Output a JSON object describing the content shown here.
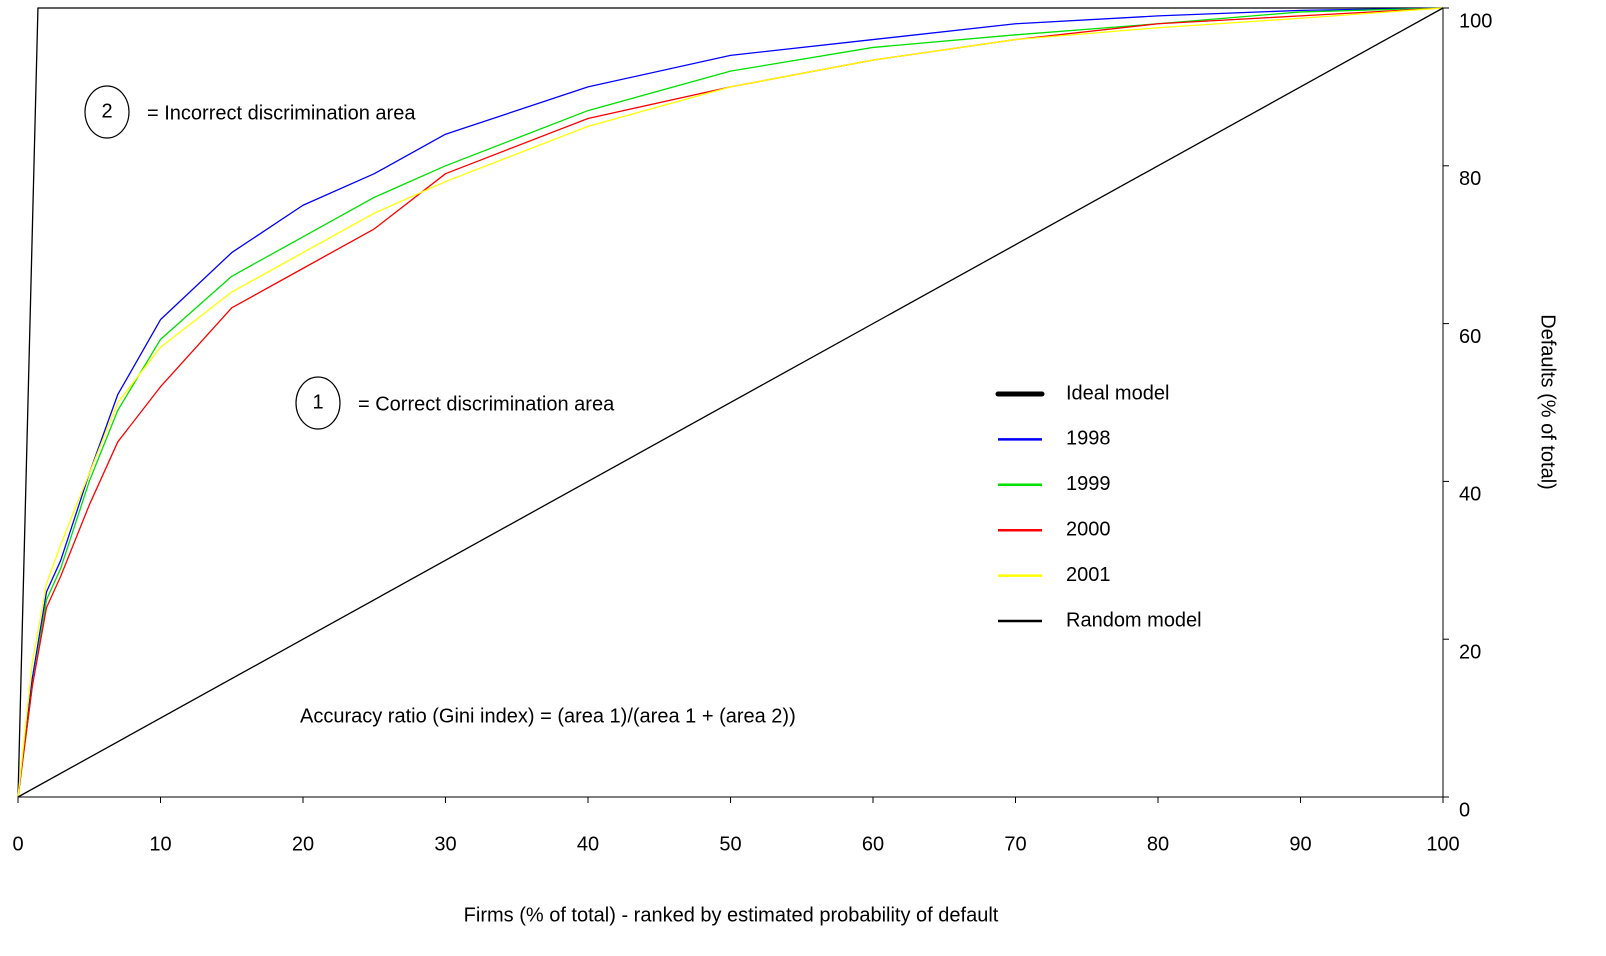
{
  "chart_data": {
    "type": "line",
    "x_label": "Firms (% of total) - ranked by estimated probability of default",
    "y_label": "Defaults (% of total)",
    "xlim": [
      0,
      100
    ],
    "xticks": [
      0,
      10,
      20,
      30,
      40,
      50,
      60,
      70,
      80,
      90,
      100
    ],
    "ylim": [
      0,
      100
    ],
    "yticks": [
      0,
      20,
      40,
      60,
      80,
      100
    ],
    "legend": "right",
    "series": [
      {
        "name": "Ideal model",
        "color": "#000000",
        "x": [
          0,
          1.4,
          100
        ],
        "values": [
          0,
          100,
          100
        ]
      },
      {
        "name": "1998",
        "color": "#0000ff",
        "x": [
          0,
          1,
          2,
          3,
          5,
          7,
          10,
          15,
          20,
          25,
          30,
          40,
          50,
          60,
          70,
          80,
          90,
          100
        ],
        "values": [
          0,
          15,
          26,
          30,
          41,
          51,
          60.5,
          69,
          75,
          79,
          84,
          90,
          94,
          96,
          98,
          99,
          99.7,
          100
        ]
      },
      {
        "name": "1999",
        "color": "#00e000",
        "x": [
          0,
          1,
          2,
          3,
          5,
          7,
          10,
          15,
          20,
          25,
          30,
          40,
          50,
          60,
          70,
          80,
          90,
          100
        ],
        "values": [
          0,
          14,
          25,
          29,
          40,
          49,
          58,
          66,
          71,
          76,
          80,
          87,
          92,
          95,
          96.6,
          98,
          99.5,
          100
        ]
      },
      {
        "name": "2000",
        "color": "#ff0000",
        "x": [
          0,
          1,
          2,
          3,
          5,
          7,
          10,
          15,
          20,
          25,
          30,
          40,
          50,
          60,
          70,
          80,
          90,
          100
        ],
        "values": [
          0,
          14,
          24,
          28,
          37,
          45,
          52,
          62,
          67,
          72,
          79,
          86,
          90,
          93.4,
          96,
          98,
          99,
          100
        ]
      },
      {
        "name": "2001",
        "color": "#ffff00",
        "x": [
          0,
          1,
          2,
          3,
          5,
          7,
          10,
          15,
          20,
          25,
          30,
          40,
          50,
          60,
          70,
          80,
          90,
          100
        ],
        "values": [
          0,
          17,
          27,
          32,
          41,
          50,
          57,
          64,
          69,
          74,
          78,
          85,
          90,
          93.4,
          96,
          97.5,
          98.7,
          100
        ]
      },
      {
        "name": "Random model",
        "color": "#000000",
        "x": [
          0,
          100
        ],
        "values": [
          0,
          100
        ]
      }
    ],
    "annotations": [
      {
        "label": "2",
        "text": "= Incorrect discrimination area"
      },
      {
        "label": "1",
        "text": "= Correct discrimination area"
      }
    ],
    "note": "Accuracy ratio (Gini index) = (area 1)/(area 1 + (area 2))"
  }
}
